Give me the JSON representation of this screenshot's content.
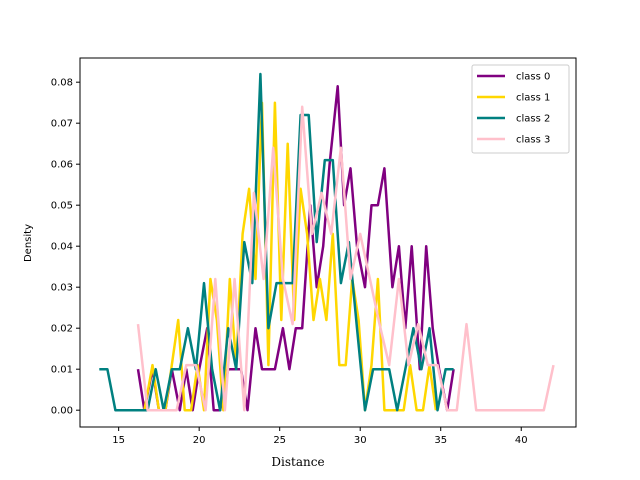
{
  "chart_data": {
    "type": "line",
    "title": "",
    "xlabel": "Distance",
    "ylabel": "Density",
    "xlim": [
      12.6,
      43.4
    ],
    "ylim": [
      -0.0041,
      0.0859
    ],
    "xticks": [
      15,
      20,
      25,
      30,
      35,
      40
    ],
    "yticks": [
      0.0,
      0.01,
      0.02,
      0.03,
      0.04,
      0.05,
      0.06,
      0.07,
      0.08
    ],
    "xtick_labels": [
      "15",
      "20",
      "25",
      "30",
      "35",
      "40"
    ],
    "ytick_labels": [
      "0.00",
      "0.01",
      "0.02",
      "0.03",
      "0.04",
      "0.05",
      "0.06",
      "0.07",
      "0.08"
    ],
    "legend_position": "top-right",
    "grid": false,
    "series": [
      {
        "name": "class 0",
        "color": "#800080",
        "x": [
          16.2,
          16.6,
          17.1,
          17.5,
          17.9,
          18.3,
          18.8,
          19.2,
          19.6,
          20.0,
          20.5,
          20.9,
          21.3,
          21.8,
          22.2,
          22.6,
          23.0,
          23.5,
          23.9,
          24.3,
          24.7,
          25.2,
          25.6,
          26.0,
          26.4,
          26.9,
          27.3,
          27.7,
          28.1,
          28.6,
          29.0,
          29.4,
          29.8,
          30.3,
          30.7,
          31.1,
          31.5,
          32.0,
          32.4,
          32.8,
          33.2,
          33.7,
          34.1,
          34.5,
          34.9,
          35.4,
          35.8
        ],
        "values": [
          0.01,
          0.0,
          0.01,
          0.0,
          0.0,
          0.01,
          0.0,
          0.01,
          0.0,
          0.01,
          0.02,
          0.0,
          0.0,
          0.01,
          0.01,
          0.01,
          0.0,
          0.02,
          0.01,
          0.01,
          0.01,
          0.02,
          0.01,
          0.02,
          0.02,
          0.05,
          0.03,
          0.04,
          0.06,
          0.079,
          0.05,
          0.059,
          0.04,
          0.03,
          0.05,
          0.05,
          0.059,
          0.03,
          0.04,
          0.02,
          0.04,
          0.01,
          0.04,
          0.02,
          0.01,
          0.0,
          0.01
        ]
      },
      {
        "name": "class 1",
        "color": "#FFD700",
        "x": [
          16.6,
          17.1,
          17.5,
          17.9,
          18.3,
          18.7,
          19.1,
          19.5,
          19.9,
          20.3,
          20.7,
          21.1,
          21.5,
          21.9,
          22.3,
          22.7,
          23.1,
          23.5,
          23.9,
          24.3,
          24.7,
          25.1,
          25.5,
          25.9,
          26.3,
          26.7,
          27.1,
          27.5,
          27.9,
          28.3,
          28.7,
          29.1,
          29.5,
          29.9,
          30.3,
          30.7,
          31.1,
          31.5,
          31.9,
          32.3,
          32.7,
          33.1,
          33.5,
          33.9,
          34.3,
          34.7
        ],
        "values": [
          0.0,
          0.011,
          0.0,
          0.0,
          0.011,
          0.022,
          0.0,
          0.0,
          0.011,
          0.0,
          0.032,
          0.022,
          0.0,
          0.032,
          0.011,
          0.043,
          0.054,
          0.032,
          0.075,
          0.011,
          0.075,
          0.022,
          0.065,
          0.022,
          0.054,
          0.043,
          0.022,
          0.032,
          0.022,
          0.043,
          0.011,
          0.011,
          0.032,
          0.022,
          0.0,
          0.011,
          0.032,
          0.0,
          0.0,
          0.0,
          0.0,
          0.011,
          0.0,
          0.0,
          0.011,
          0.0
        ]
      },
      {
        "name": "class 2",
        "color": "#008080",
        "x": [
          13.8,
          14.3,
          14.8,
          15.3,
          15.8,
          16.3,
          16.8,
          17.3,
          17.8,
          18.3,
          18.8,
          19.3,
          19.8,
          20.3,
          20.8,
          21.3,
          21.8,
          22.3,
          22.8,
          23.3,
          23.8,
          24.3,
          24.8,
          25.3,
          25.8,
          26.3,
          26.8,
          27.3,
          27.8,
          28.3,
          28.8,
          29.3,
          29.8,
          30.3,
          30.8,
          31.3,
          31.8,
          32.3,
          32.8,
          33.3,
          33.8,
          34.3,
          34.8,
          35.3,
          35.8
        ],
        "values": [
          0.01,
          0.01,
          0.0,
          0.0,
          0.0,
          0.0,
          0.0,
          0.01,
          0.0,
          0.01,
          0.01,
          0.02,
          0.01,
          0.031,
          0.01,
          0.0,
          0.02,
          0.01,
          0.041,
          0.031,
          0.082,
          0.02,
          0.031,
          0.031,
          0.031,
          0.072,
          0.072,
          0.041,
          0.061,
          0.061,
          0.031,
          0.041,
          0.02,
          0.0,
          0.01,
          0.01,
          0.01,
          0.0,
          0.01,
          0.02,
          0.01,
          0.02,
          0.0,
          0.01,
          0.01
        ]
      },
      {
        "name": "class 3",
        "color": "#FFC0CB",
        "x": [
          16.2,
          16.8,
          17.4,
          18.0,
          18.6,
          19.2,
          19.8,
          20.4,
          21.0,
          21.6,
          22.2,
          22.8,
          23.4,
          24.0,
          24.6,
          25.2,
          25.8,
          26.4,
          27.0,
          27.6,
          28.2,
          28.8,
          29.4,
          30.0,
          30.6,
          31.2,
          31.8,
          32.4,
          33.0,
          33.6,
          34.2,
          34.8,
          35.4,
          36.0,
          36.6,
          37.2,
          37.8,
          38.4,
          39.0,
          39.6,
          40.2,
          40.8,
          41.4,
          42.0
        ],
        "values": [
          0.021,
          0.0,
          0.0,
          0.0,
          0.0,
          0.011,
          0.011,
          0.0,
          0.032,
          0.0,
          0.032,
          0.0,
          0.053,
          0.032,
          0.064,
          0.032,
          0.021,
          0.074,
          0.043,
          0.053,
          0.043,
          0.064,
          0.032,
          0.043,
          0.032,
          0.021,
          0.011,
          0.032,
          0.011,
          0.021,
          0.011,
          0.011,
          0.0,
          0.0,
          0.021,
          0.0,
          0.0,
          0.0,
          0.0,
          0.0,
          0.0,
          0.0,
          0.0,
          0.011
        ]
      }
    ]
  }
}
